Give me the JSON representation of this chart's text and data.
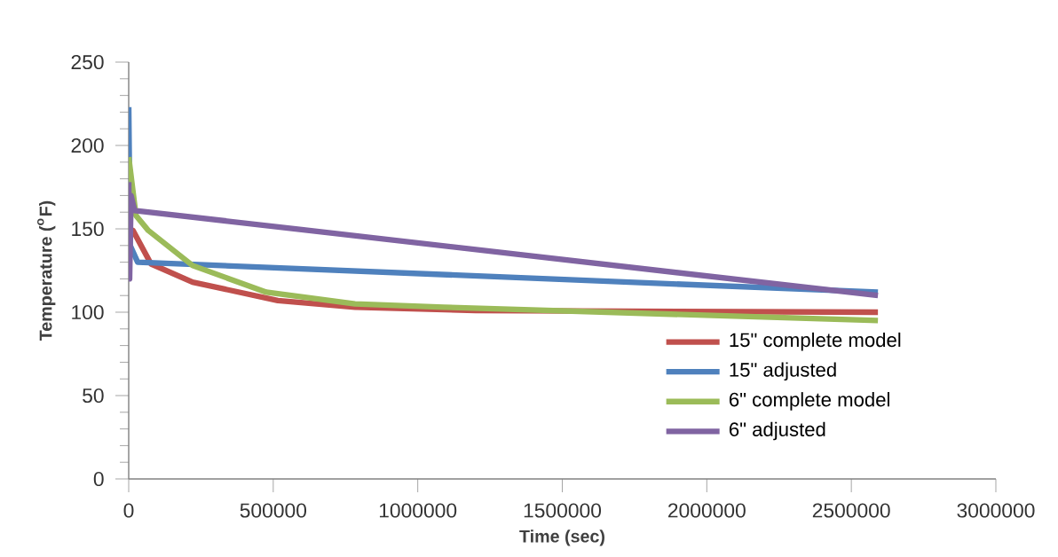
{
  "chart_data": {
    "type": "line",
    "xlabel": "Time (sec)",
    "ylabel": "Temperature ($^{o}$F)",
    "xlim": [
      0,
      3000000
    ],
    "ylim": [
      0,
      250
    ],
    "xticks": [
      0,
      500000,
      1000000,
      1500000,
      2000000,
      2500000,
      3000000
    ],
    "yticks": [
      0,
      50,
      100,
      150,
      200,
      250
    ],
    "grid": false,
    "legend": "bottom right",
    "marker": "none",
    "line_style": "solid",
    "series": [
      {
        "name": "15\" complete model",
        "color": "#c0504d",
        "x": [
          0,
          15000,
          77000,
          221000,
          516000,
          783000,
          1200000,
          2592000
        ],
        "values": [
          150,
          149,
          129,
          118,
          107,
          103,
          101,
          100
        ]
      },
      {
        "name": "15\" adjusted",
        "color": "#4f81bd",
        "x": [
          0,
          5000,
          31000,
          2592000
        ],
        "values": [
          223,
          140,
          130,
          112
        ]
      },
      {
        "name": "6\" complete model",
        "color": "#9bbb59",
        "x": [
          0,
          25000,
          68000,
          221000,
          476000,
          783000,
          1090000,
          2592000
        ],
        "values": [
          193,
          158,
          149,
          128,
          112,
          105,
          103,
          95
        ]
      },
      {
        "name": "6\" adjusted",
        "color": "#8064a2",
        "x": [
          0,
          3000,
          8000,
          20000,
          2592000
        ],
        "values": [
          178,
          120,
          170,
          161,
          110
        ]
      }
    ]
  }
}
